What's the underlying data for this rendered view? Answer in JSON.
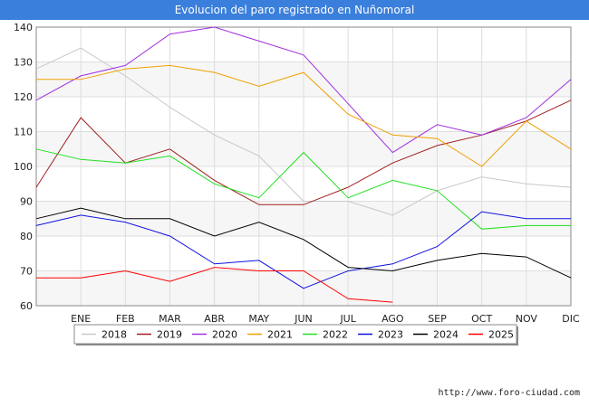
{
  "header": {
    "title": "Evolucion del paro registrado en Nuñomoral"
  },
  "footer": {
    "url": "http://www.foro-ciudad.com"
  },
  "chart_data": {
    "type": "line",
    "title": "Evolucion del paro registrado en Nuñomoral",
    "categories": [
      "",
      "ENE",
      "FEB",
      "MAR",
      "ABR",
      "MAY",
      "JUN",
      "JUL",
      "AGO",
      "SEP",
      "OCT",
      "NOV",
      "DIC"
    ],
    "ylim": [
      60,
      140
    ],
    "yticks": [
      60,
      70,
      80,
      90,
      100,
      110,
      120,
      130,
      140
    ],
    "grid": true,
    "legend_position": "bottom",
    "series": [
      {
        "name": "2018",
        "color": "#c8c8c8",
        "values": [
          128,
          134,
          126,
          117,
          109,
          103,
          90,
          90,
          86,
          93,
          97,
          95,
          94
        ]
      },
      {
        "name": "2019",
        "color": "#a02020",
        "values": [
          94,
          114,
          101,
          105,
          96,
          89,
          89,
          94,
          101,
          106,
          109,
          113,
          119
        ]
      },
      {
        "name": "2020",
        "color": "#a030e0",
        "values": [
          119,
          126,
          129,
          138,
          140,
          136,
          132,
          118,
          104,
          112,
          109,
          114,
          125
        ]
      },
      {
        "name": "2021",
        "color": "#f0a000",
        "values": [
          125,
          125,
          128,
          129,
          127,
          123,
          127,
          115,
          109,
          108,
          100,
          113,
          105
        ]
      },
      {
        "name": "2022",
        "color": "#20e020",
        "values": [
          105,
          102,
          101,
          103,
          95,
          91,
          104,
          91,
          96,
          93,
          82,
          83,
          83
        ]
      },
      {
        "name": "2023",
        "color": "#1010e0",
        "values": [
          83,
          86,
          84,
          80,
          72,
          73,
          65,
          70,
          72,
          77,
          87,
          85,
          85
        ]
      },
      {
        "name": "2024",
        "color": "#000000",
        "values": [
          85,
          88,
          85,
          85,
          80,
          84,
          79,
          71,
          70,
          73,
          75,
          74,
          68
        ]
      },
      {
        "name": "2025",
        "color": "#ff0000",
        "values": [
          68,
          68,
          70,
          67,
          71,
          70,
          70,
          62,
          61,
          null,
          null,
          null,
          null
        ]
      }
    ]
  }
}
